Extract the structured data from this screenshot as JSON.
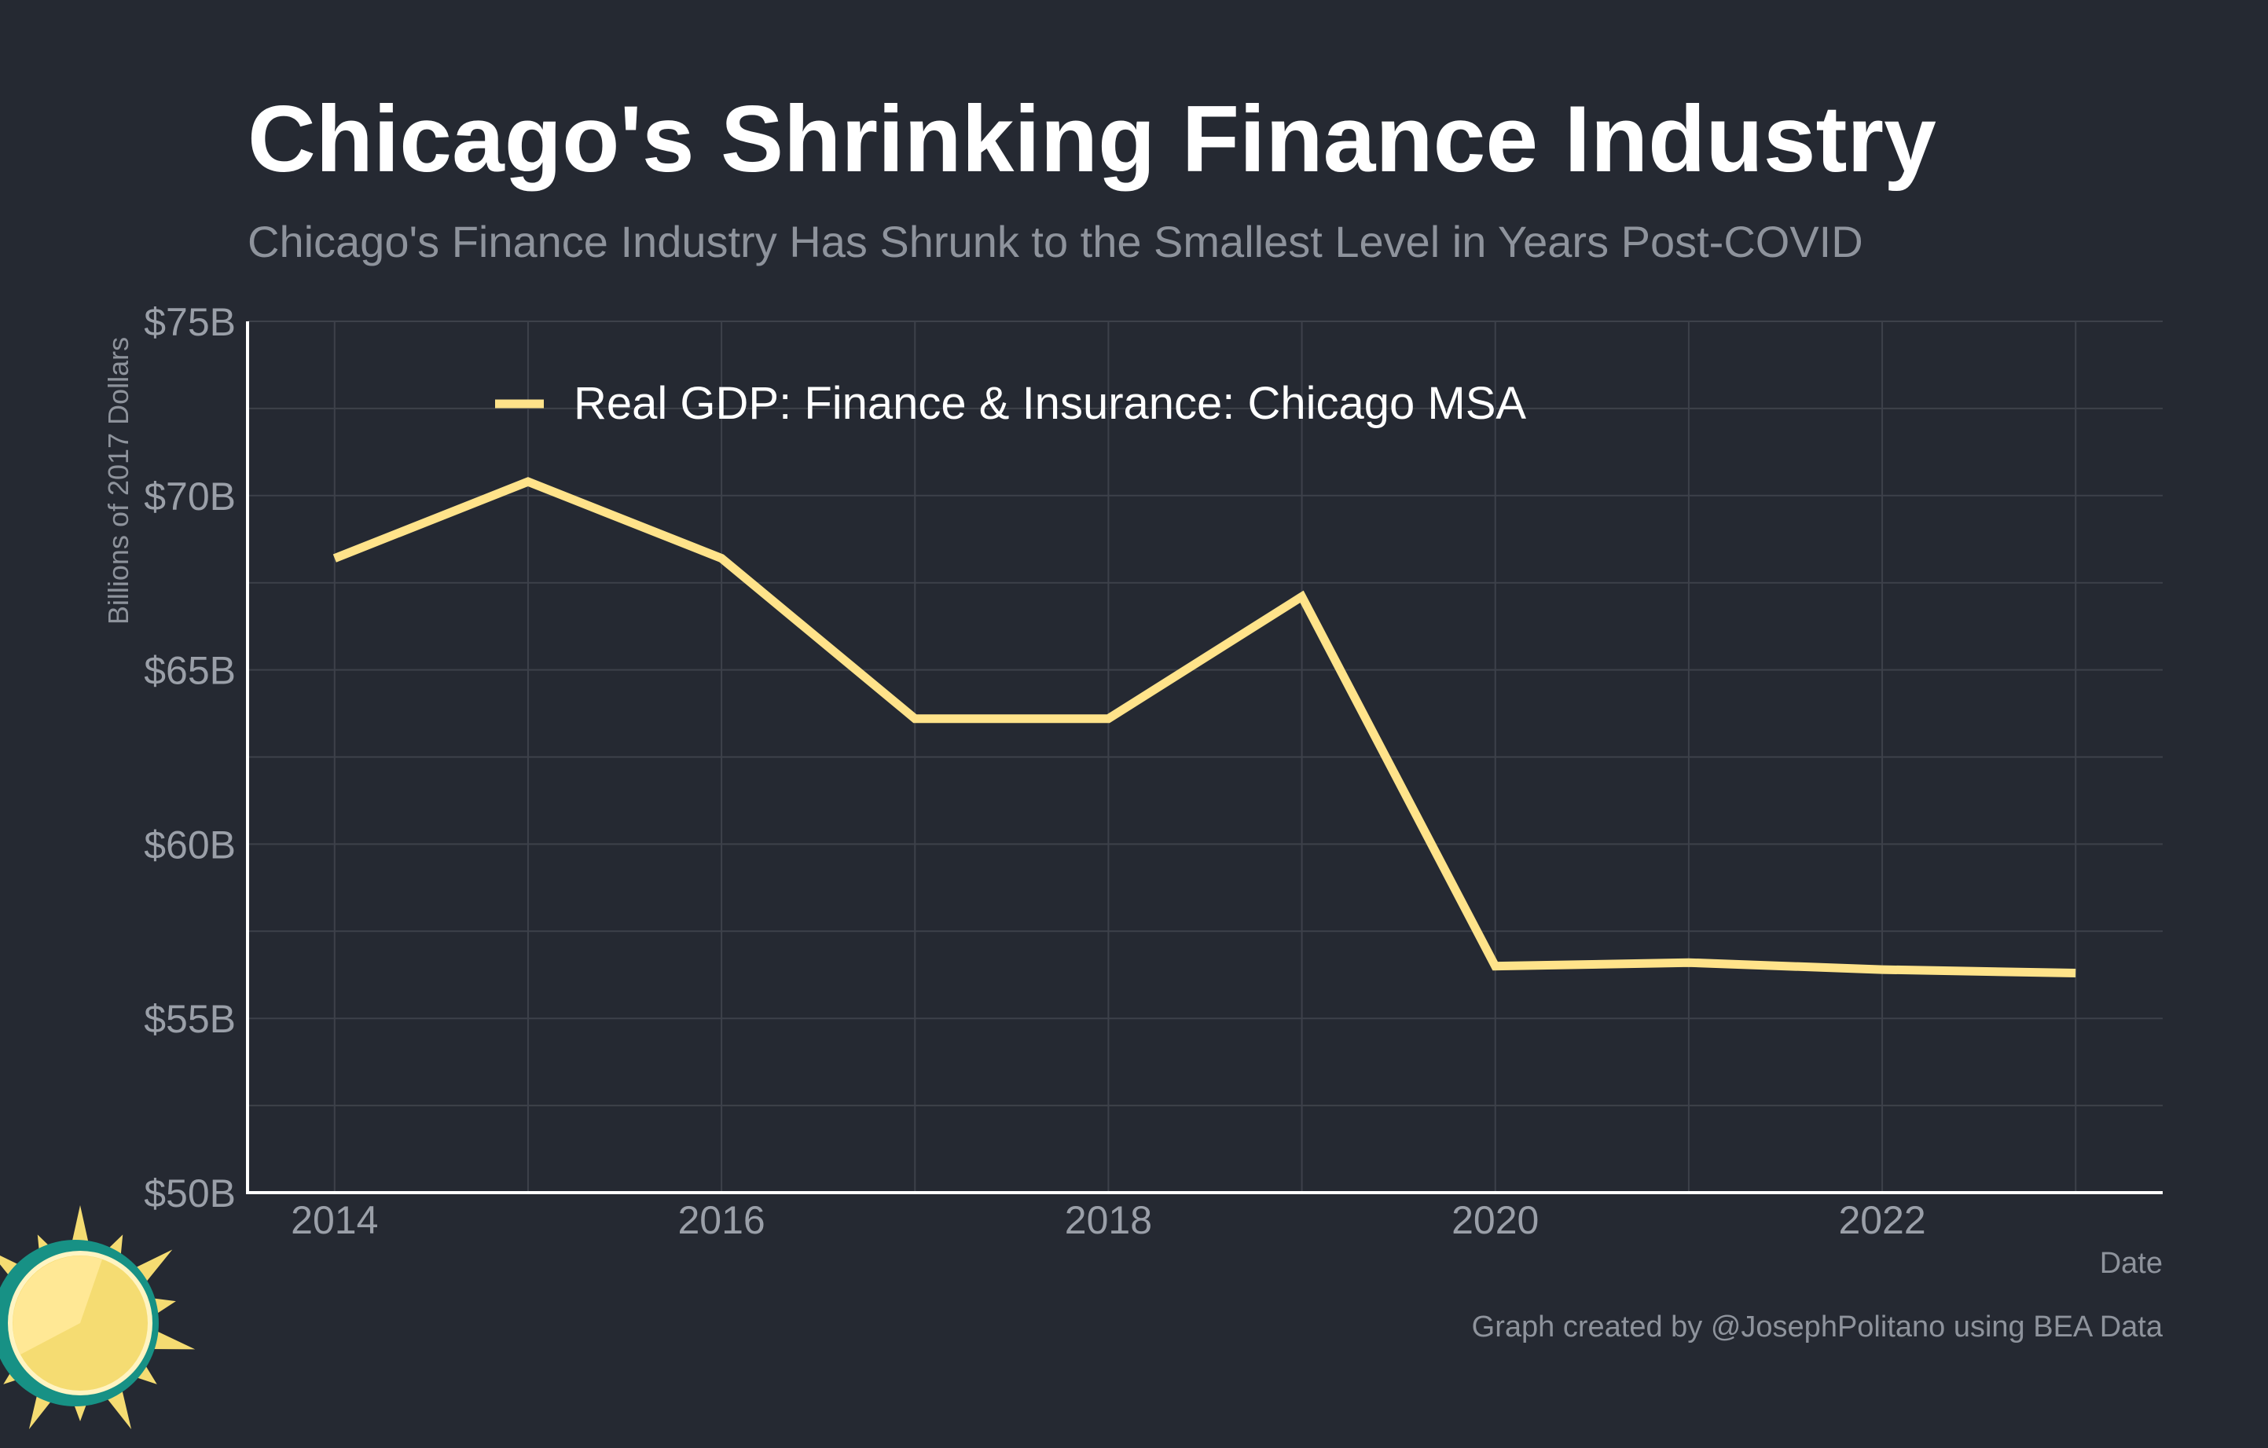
{
  "chart_data": {
    "type": "line",
    "title": "Chicago's Shrinking Finance Industry",
    "subtitle": "Chicago's Finance Industry Has Shrunk to the Smallest Level in Years Post-COVID",
    "xlabel": "Date",
    "ylabel": "Billions of 2017 Dollars",
    "x": [
      2014,
      2015,
      2016,
      2017,
      2018,
      2019,
      2020,
      2021,
      2022,
      2023
    ],
    "series": [
      {
        "name": "Real GDP: Finance & Insurance: Chicago MSA",
        "color": "#ffe38a",
        "values": [
          68.2,
          70.4,
          68.2,
          63.6,
          63.6,
          67.1,
          56.5,
          56.6,
          56.4,
          56.3
        ]
      }
    ],
    "ylim": [
      50,
      75
    ],
    "xlim": [
      2013.55,
      2023.45
    ],
    "y_ticks": [
      50,
      55,
      60,
      65,
      70,
      75
    ],
    "y_tick_labels": [
      "$50B",
      "$55B",
      "$60B",
      "$65B",
      "$70B",
      "$75B"
    ],
    "x_ticks": [
      2014,
      2016,
      2018,
      2020,
      2022
    ],
    "x_tick_labels": [
      "2014",
      "2016",
      "2018",
      "2020",
      "2022"
    ],
    "grid": true,
    "legend_position": "top-left",
    "credit": "Graph created by @JosephPolitano using BEA Data"
  },
  "colors": {
    "background": "#252932",
    "grid": "#3d414a",
    "axis": "#ffffff",
    "line": "#ffe38a",
    "logo_sun": "#f5dc72",
    "logo_ring": "#179185"
  },
  "logo": {
    "icon": "sun-logo-icon"
  }
}
